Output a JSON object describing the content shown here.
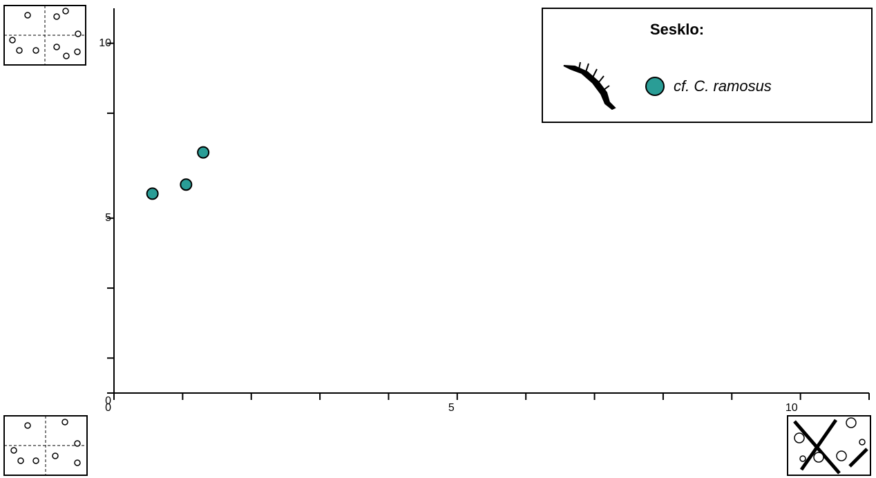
{
  "chart_data": {
    "type": "scatter",
    "xlim": [
      0,
      11
    ],
    "ylim": [
      0,
      11
    ],
    "xticks": [
      0,
      5,
      10
    ],
    "yticks": [
      0,
      5,
      10
    ],
    "xminor_ticks": [
      1,
      2,
      3,
      4,
      6,
      7,
      8,
      9,
      11
    ],
    "yminor_ticks": [
      1,
      3,
      8
    ],
    "legend": {
      "title": "Sesklo:",
      "position": "upper right"
    },
    "series": [
      {
        "name": "cf. C. ramosus",
        "color": "#2a9d96",
        "x": [
          0.56,
          1.05,
          1.3
        ],
        "values": [
          5.7,
          5.96,
          6.88
        ]
      }
    ]
  }
}
